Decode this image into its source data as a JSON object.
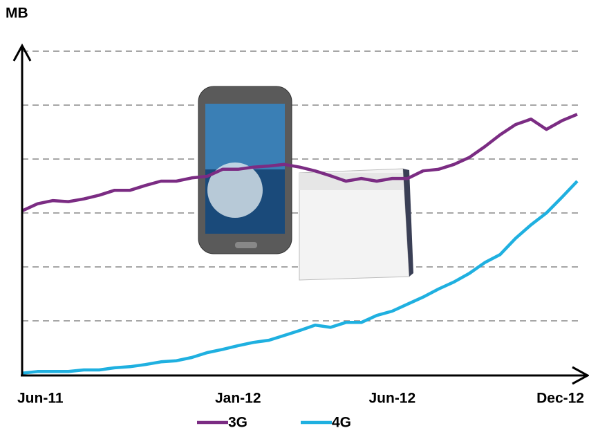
{
  "chart_data": {
    "type": "line",
    "y_label": "MB",
    "categories": [
      "Jun-11",
      null,
      null,
      null,
      null,
      null,
      null,
      null,
      null,
      null,
      null,
      null,
      null,
      null,
      "Jan-12",
      null,
      null,
      null,
      null,
      null,
      null,
      null,
      null,
      null,
      "Jun-12",
      null,
      null,
      null,
      null,
      null,
      null,
      null,
      null,
      null,
      null,
      null,
      "Dec-12"
    ],
    "series": [
      {
        "name": "3G",
        "color": "#7b2c83",
        "values": [
          3.04,
          3.17,
          3.23,
          3.21,
          3.26,
          3.33,
          3.42,
          3.42,
          3.51,
          3.59,
          3.59,
          3.65,
          3.68,
          3.81,
          3.81,
          3.85,
          3.87,
          3.9,
          3.85,
          3.78,
          3.69,
          3.59,
          3.64,
          3.59,
          3.64,
          3.64,
          3.78,
          3.81,
          3.9,
          4.03,
          4.23,
          4.45,
          4.64,
          4.74,
          4.55,
          4.71,
          4.83
        ]
      },
      {
        "name": "4G",
        "color": "#1fb0e0",
        "values": [
          0.03,
          0.06,
          0.06,
          0.06,
          0.09,
          0.09,
          0.13,
          0.15,
          0.19,
          0.24,
          0.26,
          0.32,
          0.41,
          0.47,
          0.54,
          0.6,
          0.64,
          0.73,
          0.82,
          0.92,
          0.88,
          0.97,
          0.97,
          1.1,
          1.18,
          1.31,
          1.44,
          1.59,
          1.72,
          1.88,
          2.08,
          2.23,
          2.53,
          2.78,
          3.0,
          3.29,
          3.59
        ]
      }
    ],
    "ylim": [
      0,
      6.1
    ],
    "yticks": [
      1,
      2,
      3,
      4,
      5,
      6
    ],
    "grid": true,
    "legend": "bottom"
  }
}
